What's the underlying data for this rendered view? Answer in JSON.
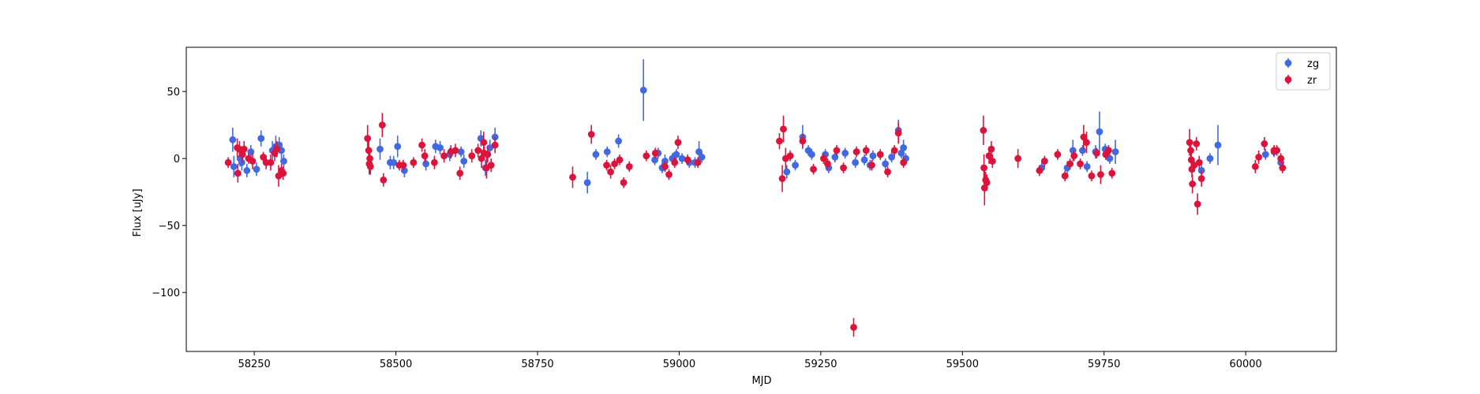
{
  "chart_data": {
    "type": "scatter",
    "title": "",
    "xlabel": "MJD",
    "ylabel": "Flux [uJy]",
    "xlim": [
      58130,
      60160
    ],
    "ylim": [
      -144,
      83
    ],
    "xticks": [
      58250,
      58500,
      58750,
      59000,
      59250,
      59500,
      59750,
      60000
    ],
    "yticks": [
      50,
      0,
      -50,
      -100
    ],
    "grid": false,
    "legend_position": "top-right",
    "error_bars": true,
    "series": [
      {
        "name": "zg",
        "color": "#4169e1",
        "points": [
          [
            58212,
            14,
            9
          ],
          [
            58214,
            -6,
            8
          ],
          [
            58225,
            0,
            6
          ],
          [
            58228,
            -3,
            6
          ],
          [
            58237,
            -9,
            5
          ],
          [
            58244,
            5,
            5
          ],
          [
            58254,
            -8,
            5
          ],
          [
            58262,
            15,
            6
          ],
          [
            58282,
            6,
            7
          ],
          [
            58288,
            9,
            8
          ],
          [
            58294,
            10,
            6
          ],
          [
            58298,
            6,
            6
          ],
          [
            58302,
            -2,
            5
          ],
          [
            58472,
            7,
            8
          ],
          [
            58490,
            -3,
            5
          ],
          [
            58496,
            -3,
            5
          ],
          [
            58503,
            9,
            8
          ],
          [
            58515,
            -9,
            5
          ],
          [
            58553,
            -4,
            5
          ],
          [
            58570,
            9,
            5
          ],
          [
            58578,
            8,
            5
          ],
          [
            58595,
            3,
            5
          ],
          [
            58615,
            5,
            4
          ],
          [
            58620,
            -2,
            5
          ],
          [
            58650,
            15,
            6
          ],
          [
            58658,
            -7,
            6
          ],
          [
            58666,
            8,
            6
          ],
          [
            58675,
            16,
            7
          ],
          [
            58838,
            -18,
            8
          ],
          [
            58853,
            3,
            4
          ],
          [
            58873,
            5,
            4
          ],
          [
            58893,
            13,
            5
          ],
          [
            58937,
            51,
            23
          ],
          [
            58957,
            -1,
            4
          ],
          [
            58963,
            4,
            4
          ],
          [
            58970,
            -7,
            4
          ],
          [
            58975,
            -2,
            5
          ],
          [
            58988,
            0,
            4
          ],
          [
            58995,
            3,
            4
          ],
          [
            59005,
            0,
            4
          ],
          [
            59018,
            -3,
            4
          ],
          [
            59028,
            -3,
            4
          ],
          [
            59035,
            5,
            8
          ],
          [
            59040,
            1,
            4
          ],
          [
            59190,
            -10,
            5
          ],
          [
            59205,
            -5,
            4
          ],
          [
            59218,
            16,
            9
          ],
          [
            59228,
            6,
            4
          ],
          [
            59234,
            3,
            4
          ],
          [
            59258,
            3,
            4
          ],
          [
            59264,
            -7,
            4
          ],
          [
            59275,
            1,
            4
          ],
          [
            59293,
            4,
            4
          ],
          [
            59311,
            -3,
            4
          ],
          [
            59327,
            -1,
            4
          ],
          [
            59337,
            -5,
            4
          ],
          [
            59342,
            2,
            4
          ],
          [
            59364,
            -4,
            4
          ],
          [
            59375,
            1,
            4
          ],
          [
            59387,
            21,
            8
          ],
          [
            59392,
            4,
            4
          ],
          [
            59396,
            8,
            6
          ],
          [
            59400,
            0,
            4
          ],
          [
            59640,
            -7,
            4
          ],
          [
            59685,
            -7,
            5
          ],
          [
            59695,
            6,
            8
          ],
          [
            59712,
            6,
            4
          ],
          [
            59720,
            -6,
            4
          ],
          [
            59735,
            5,
            5
          ],
          [
            59742,
            20,
            15
          ],
          [
            59752,
            7,
            4
          ],
          [
            59760,
            0,
            4
          ],
          [
            59770,
            5,
            9
          ],
          [
            59922,
            -9,
            4
          ],
          [
            59937,
            0,
            4
          ],
          [
            59951,
            10,
            15
          ],
          [
            60035,
            3,
            4
          ],
          [
            60050,
            5,
            4
          ],
          [
            60062,
            -3,
            4
          ]
        ]
      },
      {
        "name": "zr",
        "color": "#dc143c",
        "points": [
          [
            58204,
            -3,
            4
          ],
          [
            58220,
            8,
            7
          ],
          [
            58221,
            -11,
            7
          ],
          [
            58224,
            7,
            6
          ],
          [
            58229,
            3,
            6
          ],
          [
            58232,
            7,
            6
          ],
          [
            58240,
            0,
            4
          ],
          [
            58247,
            -2,
            6
          ],
          [
            58266,
            1,
            4
          ],
          [
            58271,
            -3,
            5
          ],
          [
            58279,
            -3,
            6
          ],
          [
            58286,
            4,
            6
          ],
          [
            58290,
            7,
            6
          ],
          [
            58293,
            -13,
            8
          ],
          [
            58298,
            -9,
            5
          ],
          [
            58301,
            -11,
            5
          ],
          [
            58450,
            15,
            10
          ],
          [
            58452,
            6,
            8
          ],
          [
            58453,
            -4,
            8
          ],
          [
            58454,
            0,
            6
          ],
          [
            58455,
            -6,
            6
          ],
          [
            58476,
            25,
            9
          ],
          [
            58478,
            -16,
            5
          ],
          [
            58506,
            -5,
            4
          ],
          [
            58513,
            -5,
            4
          ],
          [
            58531,
            -3,
            4
          ],
          [
            58546,
            10,
            5
          ],
          [
            58551,
            2,
            5
          ],
          [
            58568,
            -3,
            5
          ],
          [
            58585,
            2,
            5
          ],
          [
            58597,
            5,
            5
          ],
          [
            58605,
            6,
            5
          ],
          [
            58613,
            -11,
            5
          ],
          [
            58634,
            2,
            5
          ],
          [
            58645,
            6,
            5
          ],
          [
            58651,
            0,
            7
          ],
          [
            58655,
            12,
            8
          ],
          [
            58656,
            4,
            5
          ],
          [
            58660,
            -7,
            8
          ],
          [
            58662,
            3,
            6
          ],
          [
            58668,
            -5,
            5
          ],
          [
            58675,
            10,
            6
          ],
          [
            58812,
            -14,
            8
          ],
          [
            58845,
            18,
            7
          ],
          [
            58872,
            -5,
            4
          ],
          [
            58879,
            -10,
            5
          ],
          [
            58886,
            -4,
            4
          ],
          [
            58895,
            -1,
            4
          ],
          [
            58902,
            -18,
            4
          ],
          [
            58912,
            -6,
            4
          ],
          [
            58942,
            2,
            4
          ],
          [
            58958,
            4,
            4
          ],
          [
            58975,
            -6,
            4
          ],
          [
            58982,
            -12,
            4
          ],
          [
            58992,
            -3,
            4
          ],
          [
            58998,
            12,
            5
          ],
          [
            59015,
            -1,
            4
          ],
          [
            59033,
            -3,
            4
          ],
          [
            59177,
            13,
            6
          ],
          [
            59182,
            -15,
            10
          ],
          [
            59184,
            22,
            10
          ],
          [
            59188,
            0,
            8
          ],
          [
            59196,
            2,
            4
          ],
          [
            59218,
            13,
            5
          ],
          [
            59237,
            -8,
            4
          ],
          [
            59255,
            0,
            4
          ],
          [
            59262,
            -4,
            4
          ],
          [
            59278,
            6,
            4
          ],
          [
            59290,
            -7,
            4
          ],
          [
            59308,
            -126,
            7
          ],
          [
            59313,
            5,
            4
          ],
          [
            59330,
            6,
            4
          ],
          [
            59340,
            -5,
            4
          ],
          [
            59355,
            3,
            4
          ],
          [
            59368,
            -10,
            4
          ],
          [
            59380,
            6,
            4
          ],
          [
            59387,
            19,
            8
          ],
          [
            59396,
            -3,
            4
          ],
          [
            59537,
            21,
            11
          ],
          [
            59538,
            -7,
            10
          ],
          [
            59539,
            -22,
            13
          ],
          [
            59541,
            -16,
            6
          ],
          [
            59543,
            -18,
            6
          ],
          [
            59547,
            2,
            6
          ],
          [
            59551,
            7,
            6
          ],
          [
            59553,
            -2,
            5
          ],
          [
            59598,
            0,
            7
          ],
          [
            59636,
            -9,
            4
          ],
          [
            59645,
            -2,
            4
          ],
          [
            59668,
            3,
            4
          ],
          [
            59681,
            -13,
            4
          ],
          [
            59690,
            -4,
            4
          ],
          [
            59697,
            2,
            4
          ],
          [
            59708,
            -4,
            4
          ],
          [
            59714,
            16,
            9
          ],
          [
            59719,
            12,
            8
          ],
          [
            59728,
            -13,
            4
          ],
          [
            59737,
            4,
            4
          ],
          [
            59744,
            -12,
            7
          ],
          [
            59753,
            3,
            4
          ],
          [
            59758,
            6,
            4
          ],
          [
            59764,
            -11,
            4
          ],
          [
            59901,
            12,
            10
          ],
          [
            59903,
            6,
            8
          ],
          [
            59904,
            -1,
            6
          ],
          [
            59905,
            -8,
            6
          ],
          [
            59906,
            -19,
            7
          ],
          [
            59909,
            -5,
            5
          ],
          [
            59913,
            11,
            5
          ],
          [
            59915,
            -34,
            8
          ],
          [
            59918,
            -3,
            5
          ],
          [
            59922,
            -15,
            6
          ],
          [
            60017,
            -6,
            5
          ],
          [
            60023,
            1,
            5
          ],
          [
            60033,
            11,
            5
          ],
          [
            60050,
            6,
            4
          ],
          [
            60055,
            6,
            4
          ],
          [
            60062,
            0,
            4
          ],
          [
            60065,
            -7,
            4
          ]
        ]
      }
    ]
  }
}
